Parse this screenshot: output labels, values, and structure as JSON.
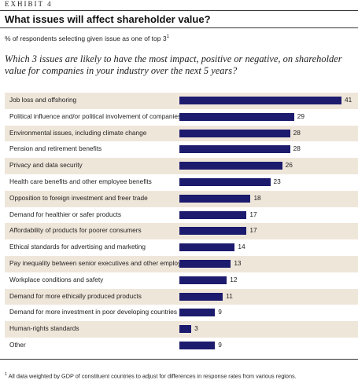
{
  "exhibit": {
    "label": "EXHIBIT",
    "number": "4"
  },
  "title": "What issues will affect shareholder value?",
  "subtitle": "% of respondents selecting given issue as one of top 3",
  "subtitle_footnote_mark": "1",
  "question": "Which 3 issues are likely to have the most impact, positive or negative, on shareholder value for companies in your industry over the next 5 years?",
  "footnote_mark": "1",
  "footnote": "All data weighted by GDP of constituent countries to adjust for differences in response rates from various regions.",
  "colors": {
    "bar": "#1c1b6e",
    "band": "#efe6da"
  },
  "chart_data": {
    "type": "bar",
    "orientation": "horizontal",
    "categories": [
      "Job loss and offshoring",
      "Political influence and/or political involvement of companies",
      "Environmental issues, including climate change",
      "Pension and retirement benefits",
      "Privacy and data security",
      "Health care benefits and other employee benefits",
      "Opposition to foreign investment and freer trade",
      "Demand for healthier or safer products",
      "Affordability of products for poorer consumers",
      "Ethical standards for advertising and marketing",
      "Pay inequality between senior executives and other employees",
      "Workplace conditions and safety",
      "Demand for more ethically produced products",
      "Demand for more investment in poor developing countries",
      "Human-rights standards",
      "Other"
    ],
    "values": [
      41,
      29,
      28,
      28,
      26,
      23,
      18,
      17,
      17,
      14,
      13,
      12,
      11,
      9,
      3,
      9
    ],
    "xlim": [
      0,
      41
    ],
    "grid": false,
    "legend": "none"
  }
}
